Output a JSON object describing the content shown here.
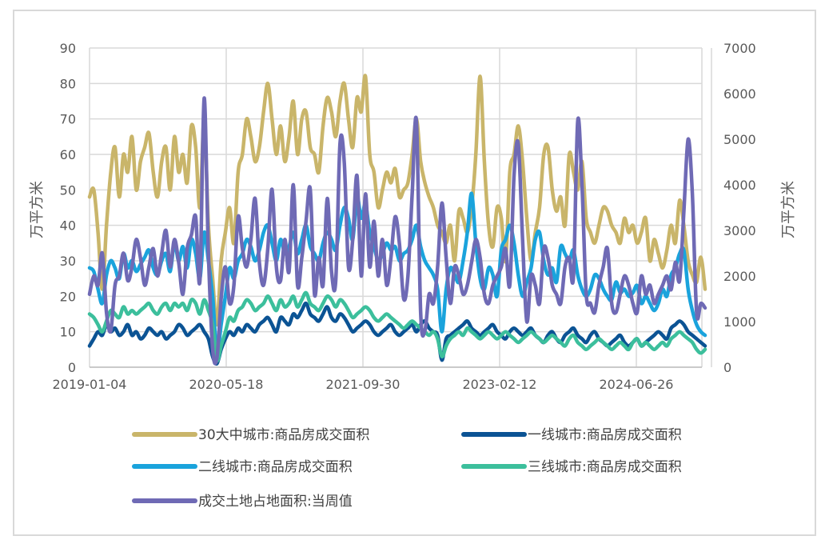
{
  "chart_data": {
    "type": "line",
    "title": "",
    "ylabel_left": "万平方米",
    "ylabel_right": "万平方米",
    "ylim_left": [
      0,
      90
    ],
    "ylim_right": [
      0,
      7000
    ],
    "yticks_left": [
      "0",
      "10",
      "20",
      "30",
      "40",
      "50",
      "60",
      "70",
      "80",
      "90"
    ],
    "yticks_right": [
      "0",
      "1000",
      "2000",
      "3000",
      "4000",
      "5000",
      "6000",
      "7000"
    ],
    "xticks": [
      "2019-01-04",
      "2020-05-18",
      "2021-09-30",
      "2023-02-12",
      "2024-06-26"
    ],
    "legend_position": "bottom",
    "grid": true,
    "series": [
      {
        "name": "30大中城市:商品房成交面积",
        "color": "#c9b56a",
        "axis": "left",
        "values": [
          48,
          50,
          38,
          22,
          40,
          55,
          62,
          48,
          60,
          55,
          65,
          50,
          58,
          62,
          66,
          55,
          48,
          58,
          62,
          50,
          65,
          55,
          60,
          52,
          68,
          62,
          45,
          70,
          40,
          25,
          12,
          30,
          38,
          45,
          35,
          55,
          60,
          70,
          65,
          58,
          62,
          72,
          80,
          70,
          60,
          68,
          58,
          65,
          75,
          60,
          70,
          72,
          62,
          60,
          55,
          68,
          76,
          72,
          65,
          75,
          80,
          70,
          62,
          76,
          72,
          82,
          60,
          55,
          45,
          50,
          55,
          52,
          56,
          48,
          50,
          52,
          60,
          70,
          58,
          52,
          48,
          45,
          40,
          38,
          35,
          40,
          30,
          44,
          42,
          38,
          45,
          60,
          82,
          58,
          40,
          34,
          45,
          42,
          30,
          55,
          60,
          68,
          58,
          42,
          30,
          38,
          45,
          60,
          62,
          50,
          44,
          48,
          40,
          60,
          55,
          50,
          58,
          42,
          38,
          35,
          40,
          45,
          44,
          40,
          38,
          35,
          42,
          38,
          40,
          35,
          38,
          42,
          30,
          36,
          32,
          28,
          33,
          40,
          35,
          47,
          40,
          30,
          26,
          24,
          31,
          22
        ]
      },
      {
        "name": "一线城市:商品房成交面积",
        "color": "#0b5394",
        "axis": "left",
        "values": [
          6,
          8,
          10,
          9,
          12,
          10,
          11,
          9,
          10,
          12,
          9,
          10,
          8,
          9,
          11,
          10,
          9,
          10,
          8,
          9,
          10,
          12,
          11,
          9,
          10,
          11,
          12,
          10,
          8,
          3,
          1,
          5,
          8,
          10,
          9,
          11,
          10,
          12,
          11,
          10,
          12,
          13,
          14,
          12,
          10,
          14,
          13,
          12,
          15,
          14,
          16,
          18,
          15,
          14,
          13,
          15,
          17,
          14,
          13,
          15,
          14,
          12,
          10,
          11,
          12,
          13,
          12,
          10,
          9,
          10,
          11,
          12,
          10,
          9,
          10,
          11,
          12,
          10,
          12,
          13,
          11,
          10,
          9,
          2,
          8,
          9,
          10,
          11,
          12,
          13,
          11,
          10,
          9,
          10,
          11,
          12,
          10,
          9,
          8,
          10,
          11,
          10,
          9,
          10,
          11,
          9,
          8,
          7,
          9,
          10,
          8,
          7,
          9,
          10,
          11,
          9,
          8,
          7,
          9,
          10,
          8,
          7,
          6,
          7,
          8,
          9,
          7,
          6,
          7,
          8,
          6,
          7,
          8,
          9,
          10,
          9,
          8,
          11,
          12,
          13,
          12,
          10,
          9,
          8,
          7,
          6
        ]
      },
      {
        "name": "二线城市:商品房成交面积",
        "color": "#1aa3dc",
        "axis": "left",
        "values": [
          28,
          27,
          22,
          18,
          26,
          30,
          28,
          25,
          32,
          28,
          30,
          27,
          29,
          31,
          33,
          28,
          26,
          30,
          32,
          27,
          35,
          30,
          34,
          28,
          36,
          32,
          25,
          38,
          30,
          20,
          4,
          12,
          20,
          28,
          25,
          30,
          32,
          36,
          34,
          30,
          33,
          38,
          40,
          35,
          30,
          36,
          32,
          34,
          38,
          32,
          36,
          40,
          34,
          32,
          30,
          35,
          38,
          36,
          33,
          40,
          45,
          42,
          36,
          48,
          42,
          46,
          38,
          34,
          30,
          32,
          35,
          33,
          34,
          30,
          32,
          33,
          36,
          40,
          34,
          30,
          28,
          26,
          22,
          10,
          22,
          28,
          26,
          24,
          30,
          38,
          49,
          35,
          25,
          22,
          28,
          26,
          20,
          33,
          36,
          40,
          35,
          26,
          20,
          24,
          28,
          36,
          38,
          30,
          26,
          28,
          24,
          34,
          32,
          30,
          33,
          26,
          22,
          20,
          22,
          26,
          25,
          22,
          20,
          19,
          24,
          21,
          22,
          20,
          21,
          23,
          18,
          20,
          18,
          16,
          18,
          22,
          20,
          26,
          28,
          32,
          33,
          22,
          16,
          12,
          10,
          9
        ]
      },
      {
        "name": "三线城市:商品房成交面积",
        "color": "#3cbf9c",
        "axis": "left",
        "values": [
          15,
          14,
          12,
          10,
          13,
          16,
          15,
          14,
          17,
          15,
          16,
          15,
          16,
          17,
          18,
          16,
          15,
          17,
          18,
          16,
          18,
          17,
          18,
          16,
          19,
          18,
          15,
          19,
          16,
          12,
          2,
          6,
          10,
          14,
          13,
          16,
          17,
          19,
          18,
          16,
          17,
          18,
          20,
          18,
          16,
          19,
          17,
          18,
          20,
          17,
          19,
          21,
          18,
          17,
          16,
          18,
          20,
          19,
          17,
          19,
          18,
          16,
          14,
          15,
          16,
          17,
          16,
          14,
          13,
          14,
          15,
          14,
          13,
          12,
          11,
          12,
          13,
          12,
          11,
          10,
          9,
          10,
          8,
          3,
          6,
          8,
          9,
          10,
          9,
          11,
          10,
          9,
          8,
          9,
          10,
          9,
          8,
          9,
          10,
          9,
          8,
          7,
          8,
          9,
          10,
          9,
          8,
          7,
          8,
          9,
          8,
          7,
          6,
          8,
          9,
          7,
          6,
          5,
          6,
          7,
          8,
          7,
          6,
          5,
          6,
          7,
          6,
          5,
          7,
          8,
          6,
          7,
          6,
          5,
          6,
          7,
          6,
          8,
          9,
          10,
          9,
          8,
          7,
          5,
          4,
          5
        ]
      },
      {
        "name": "成交土地占地面积:当周值",
        "color": "#6f6ab5",
        "axis": "right",
        "values": [
          1600,
          2000,
          1800,
          2500,
          1200,
          800,
          1800,
          2000,
          2500,
          1900,
          2200,
          2800,
          2400,
          1800,
          2200,
          2600,
          2000,
          2500,
          3000,
          2200,
          2800,
          2300,
          1600,
          2600,
          2900,
          3300,
          1900,
          5900,
          2500,
          400,
          200,
          1500,
          2200,
          1400,
          1800,
          3300,
          2600,
          2200,
          2800,
          3700,
          2300,
          1800,
          2600,
          3900,
          2200,
          1900,
          2800,
          2100,
          4000,
          1800,
          2400,
          3200,
          3900,
          1600,
          2400,
          1800,
          3700,
          2100,
          1900,
          4900,
          4500,
          2200,
          2800,
          4200,
          2000,
          3800,
          2200,
          3200,
          2000,
          2800,
          1800,
          2400,
          3300,
          2700,
          1500,
          2000,
          3800,
          5400,
          1200,
          800,
          1600,
          1400,
          2200,
          3600,
          2400,
          1400,
          2200,
          2000,
          1600,
          1800,
          2300,
          2800,
          2400,
          1600,
          1400,
          1800,
          2000,
          2200,
          2600,
          1800,
          4200,
          4900,
          2800,
          1000,
          2000,
          1800,
          1400,
          2600,
          2400,
          1800,
          1600,
          1400,
          2200,
          2400,
          2000,
          5400,
          4000,
          1600,
          1400,
          1200,
          1800,
          2200,
          2600,
          1400,
          1200,
          1600,
          2000,
          1800,
          1400,
          1200,
          2000,
          1600,
          1800,
          1400,
          1600,
          1800,
          2000,
          1700,
          2300,
          1900,
          3400,
          5000,
          3800,
          1200,
          1400,
          1300
        ]
      }
    ]
  }
}
